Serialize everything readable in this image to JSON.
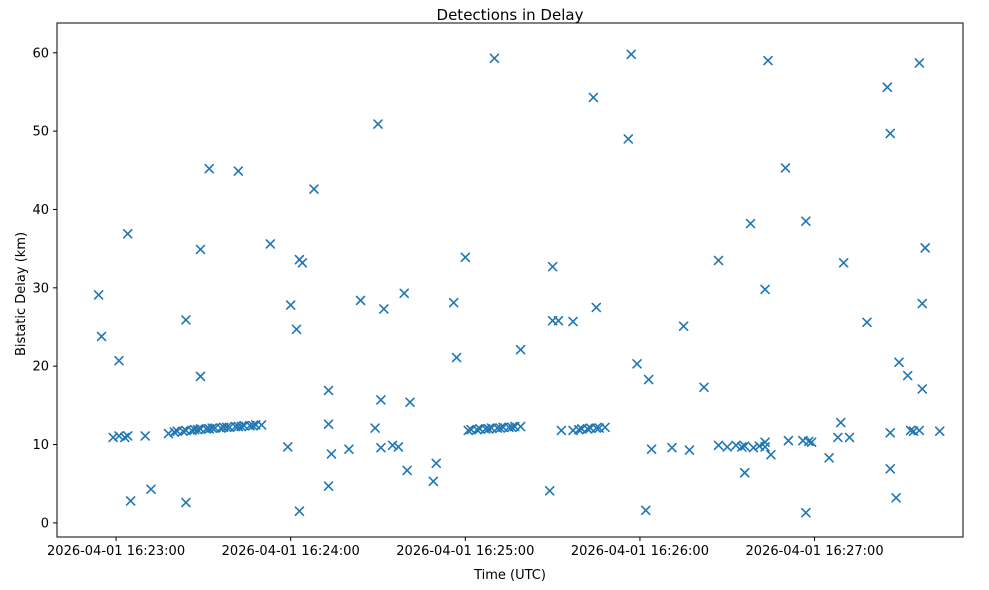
{
  "chart_data": {
    "type": "scatter",
    "title": "Detections in Delay",
    "xlabel": "Time (UTC)",
    "ylabel": "Bistatic Delay (km)",
    "marker": "x",
    "marker_color": "#1f77b4",
    "grid": false,
    "legend": "none",
    "x_axis_base_time": "2026-04-01 16:23:00",
    "x_units": "seconds after 2026-04-01 16:23:00 UTC",
    "xlim_seconds": [
      -20.3,
      291
    ],
    "ylim": [
      -1.8,
      63.8
    ],
    "x_ticks": [
      {
        "t": 0,
        "label": "2026-04-01 16:23:00"
      },
      {
        "t": 60,
        "label": "2026-04-01 16:24:00"
      },
      {
        "t": 120,
        "label": "2026-04-01 16:25:00"
      },
      {
        "t": 180,
        "label": "2026-04-01 16:26:00"
      },
      {
        "t": 240,
        "label": "2026-04-01 16:27:00"
      }
    ],
    "y_ticks": [
      0,
      10,
      20,
      30,
      40,
      50,
      60
    ],
    "points": [
      [
        32,
        45.2
      ],
      [
        42,
        44.9
      ],
      [
        68,
        42.6
      ],
      [
        4,
        36.9
      ],
      [
        29,
        34.9
      ],
      [
        53,
        35.6
      ],
      [
        63,
        33.6
      ],
      [
        64,
        33.2
      ],
      [
        130,
        59.3
      ],
      [
        177,
        59.8
      ],
      [
        164,
        54.3
      ],
      [
        90,
        50.9
      ],
      [
        176,
        49.0
      ],
      [
        120,
        33.9
      ],
      [
        150,
        32.7
      ],
      [
        224,
        59.0
      ],
      [
        276,
        58.7
      ],
      [
        265,
        55.6
      ],
      [
        266,
        49.7
      ],
      [
        230,
        45.3
      ],
      [
        218,
        38.2
      ],
      [
        237,
        38.5
      ],
      [
        278,
        35.1
      ],
      [
        207,
        33.5
      ],
      [
        250,
        33.2
      ],
      [
        -6,
        29.1
      ],
      [
        60,
        27.8
      ],
      [
        24,
        25.9
      ],
      [
        62,
        24.7
      ],
      [
        -5,
        23.8
      ],
      [
        1,
        20.7
      ],
      [
        29,
        18.7
      ],
      [
        73,
        16.9
      ],
      [
        84,
        28.4
      ],
      [
        92,
        27.3
      ],
      [
        99,
        29.3
      ],
      [
        116,
        28.1
      ],
      [
        150,
        25.8
      ],
      [
        152,
        25.8
      ],
      [
        157,
        25.7
      ],
      [
        165,
        27.5
      ],
      [
        139,
        22.1
      ],
      [
        117,
        21.1
      ],
      [
        179,
        20.3
      ],
      [
        183,
        18.3
      ],
      [
        223,
        29.8
      ],
      [
        277,
        28.0
      ],
      [
        195,
        25.1
      ],
      [
        258,
        25.6
      ],
      [
        269,
        20.5
      ],
      [
        272,
        18.8
      ],
      [
        202,
        17.3
      ],
      [
        277,
        17.1
      ],
      [
        -1,
        10.9
      ],
      [
        1,
        11.1
      ],
      [
        3,
        10.9
      ],
      [
        4,
        11.1
      ],
      [
        10,
        11.1
      ],
      [
        18,
        11.4
      ],
      [
        12,
        4.3
      ],
      [
        5,
        2.8
      ],
      [
        24,
        2.6
      ],
      [
        20,
        11.6
      ],
      [
        21,
        11.7
      ],
      [
        23,
        11.7
      ],
      [
        24,
        11.8
      ],
      [
        26,
        11.8
      ],
      [
        27,
        11.9
      ],
      [
        28,
        11.9
      ],
      [
        29,
        12.0
      ],
      [
        31,
        12.0
      ],
      [
        32,
        12.0
      ],
      [
        33,
        12.1
      ],
      [
        34,
        12.1
      ],
      [
        36,
        12.1
      ],
      [
        37,
        12.2
      ],
      [
        38,
        12.2
      ],
      [
        39,
        12.2
      ],
      [
        41,
        12.3
      ],
      [
        42,
        12.3
      ],
      [
        43,
        12.3
      ],
      [
        44,
        12.4
      ],
      [
        46,
        12.4
      ],
      [
        47,
        12.4
      ],
      [
        48,
        12.5
      ],
      [
        50,
        12.5
      ],
      [
        59,
        9.7
      ],
      [
        91,
        15.7
      ],
      [
        101,
        15.4
      ],
      [
        73,
        12.6
      ],
      [
        89,
        12.1
      ],
      [
        74,
        8.8
      ],
      [
        80,
        9.4
      ],
      [
        91,
        9.6
      ],
      [
        95,
        9.9
      ],
      [
        97,
        9.7
      ],
      [
        100,
        6.7
      ],
      [
        110,
        7.6
      ],
      [
        109,
        5.3
      ],
      [
        73,
        4.7
      ],
      [
        63,
        1.5
      ],
      [
        121,
        11.8
      ],
      [
        122,
        11.9
      ],
      [
        124,
        11.9
      ],
      [
        125,
        12.0
      ],
      [
        127,
        12.0
      ],
      [
        128,
        12.0
      ],
      [
        129,
        12.1
      ],
      [
        131,
        12.1
      ],
      [
        132,
        12.1
      ],
      [
        133,
        12.2
      ],
      [
        135,
        12.2
      ],
      [
        136,
        12.2
      ],
      [
        137,
        12.3
      ],
      [
        139,
        12.3
      ],
      [
        153,
        11.8
      ],
      [
        157,
        11.8
      ],
      [
        159,
        11.9
      ],
      [
        160,
        12.0
      ],
      [
        162,
        12.0
      ],
      [
        163,
        12.1
      ],
      [
        165,
        12.1
      ],
      [
        166,
        12.1
      ],
      [
        168,
        12.2
      ],
      [
        149,
        4.1
      ],
      [
        184,
        9.4
      ],
      [
        191,
        9.6
      ],
      [
        197,
        9.3
      ],
      [
        207,
        9.9
      ],
      [
        210,
        9.7
      ],
      [
        213,
        9.9
      ],
      [
        215,
        9.7
      ],
      [
        216,
        9.8
      ],
      [
        219,
        9.6
      ],
      [
        221,
        9.8
      ],
      [
        223,
        9.7
      ],
      [
        216,
        6.4
      ],
      [
        182,
        1.6
      ],
      [
        223,
        10.3
      ],
      [
        225,
        8.7
      ],
      [
        231,
        10.5
      ],
      [
        236,
        10.5
      ],
      [
        238,
        10.4
      ],
      [
        239,
        10.3
      ],
      [
        249,
        12.8
      ],
      [
        248,
        10.9
      ],
      [
        252,
        10.9
      ],
      [
        245,
        8.3
      ],
      [
        266,
        11.5
      ],
      [
        273,
        11.8
      ],
      [
        274,
        11.7
      ],
      [
        276,
        11.8
      ],
      [
        266,
        6.9
      ],
      [
        268,
        3.2
      ],
      [
        237,
        1.3
      ],
      [
        283,
        11.7
      ]
    ]
  }
}
